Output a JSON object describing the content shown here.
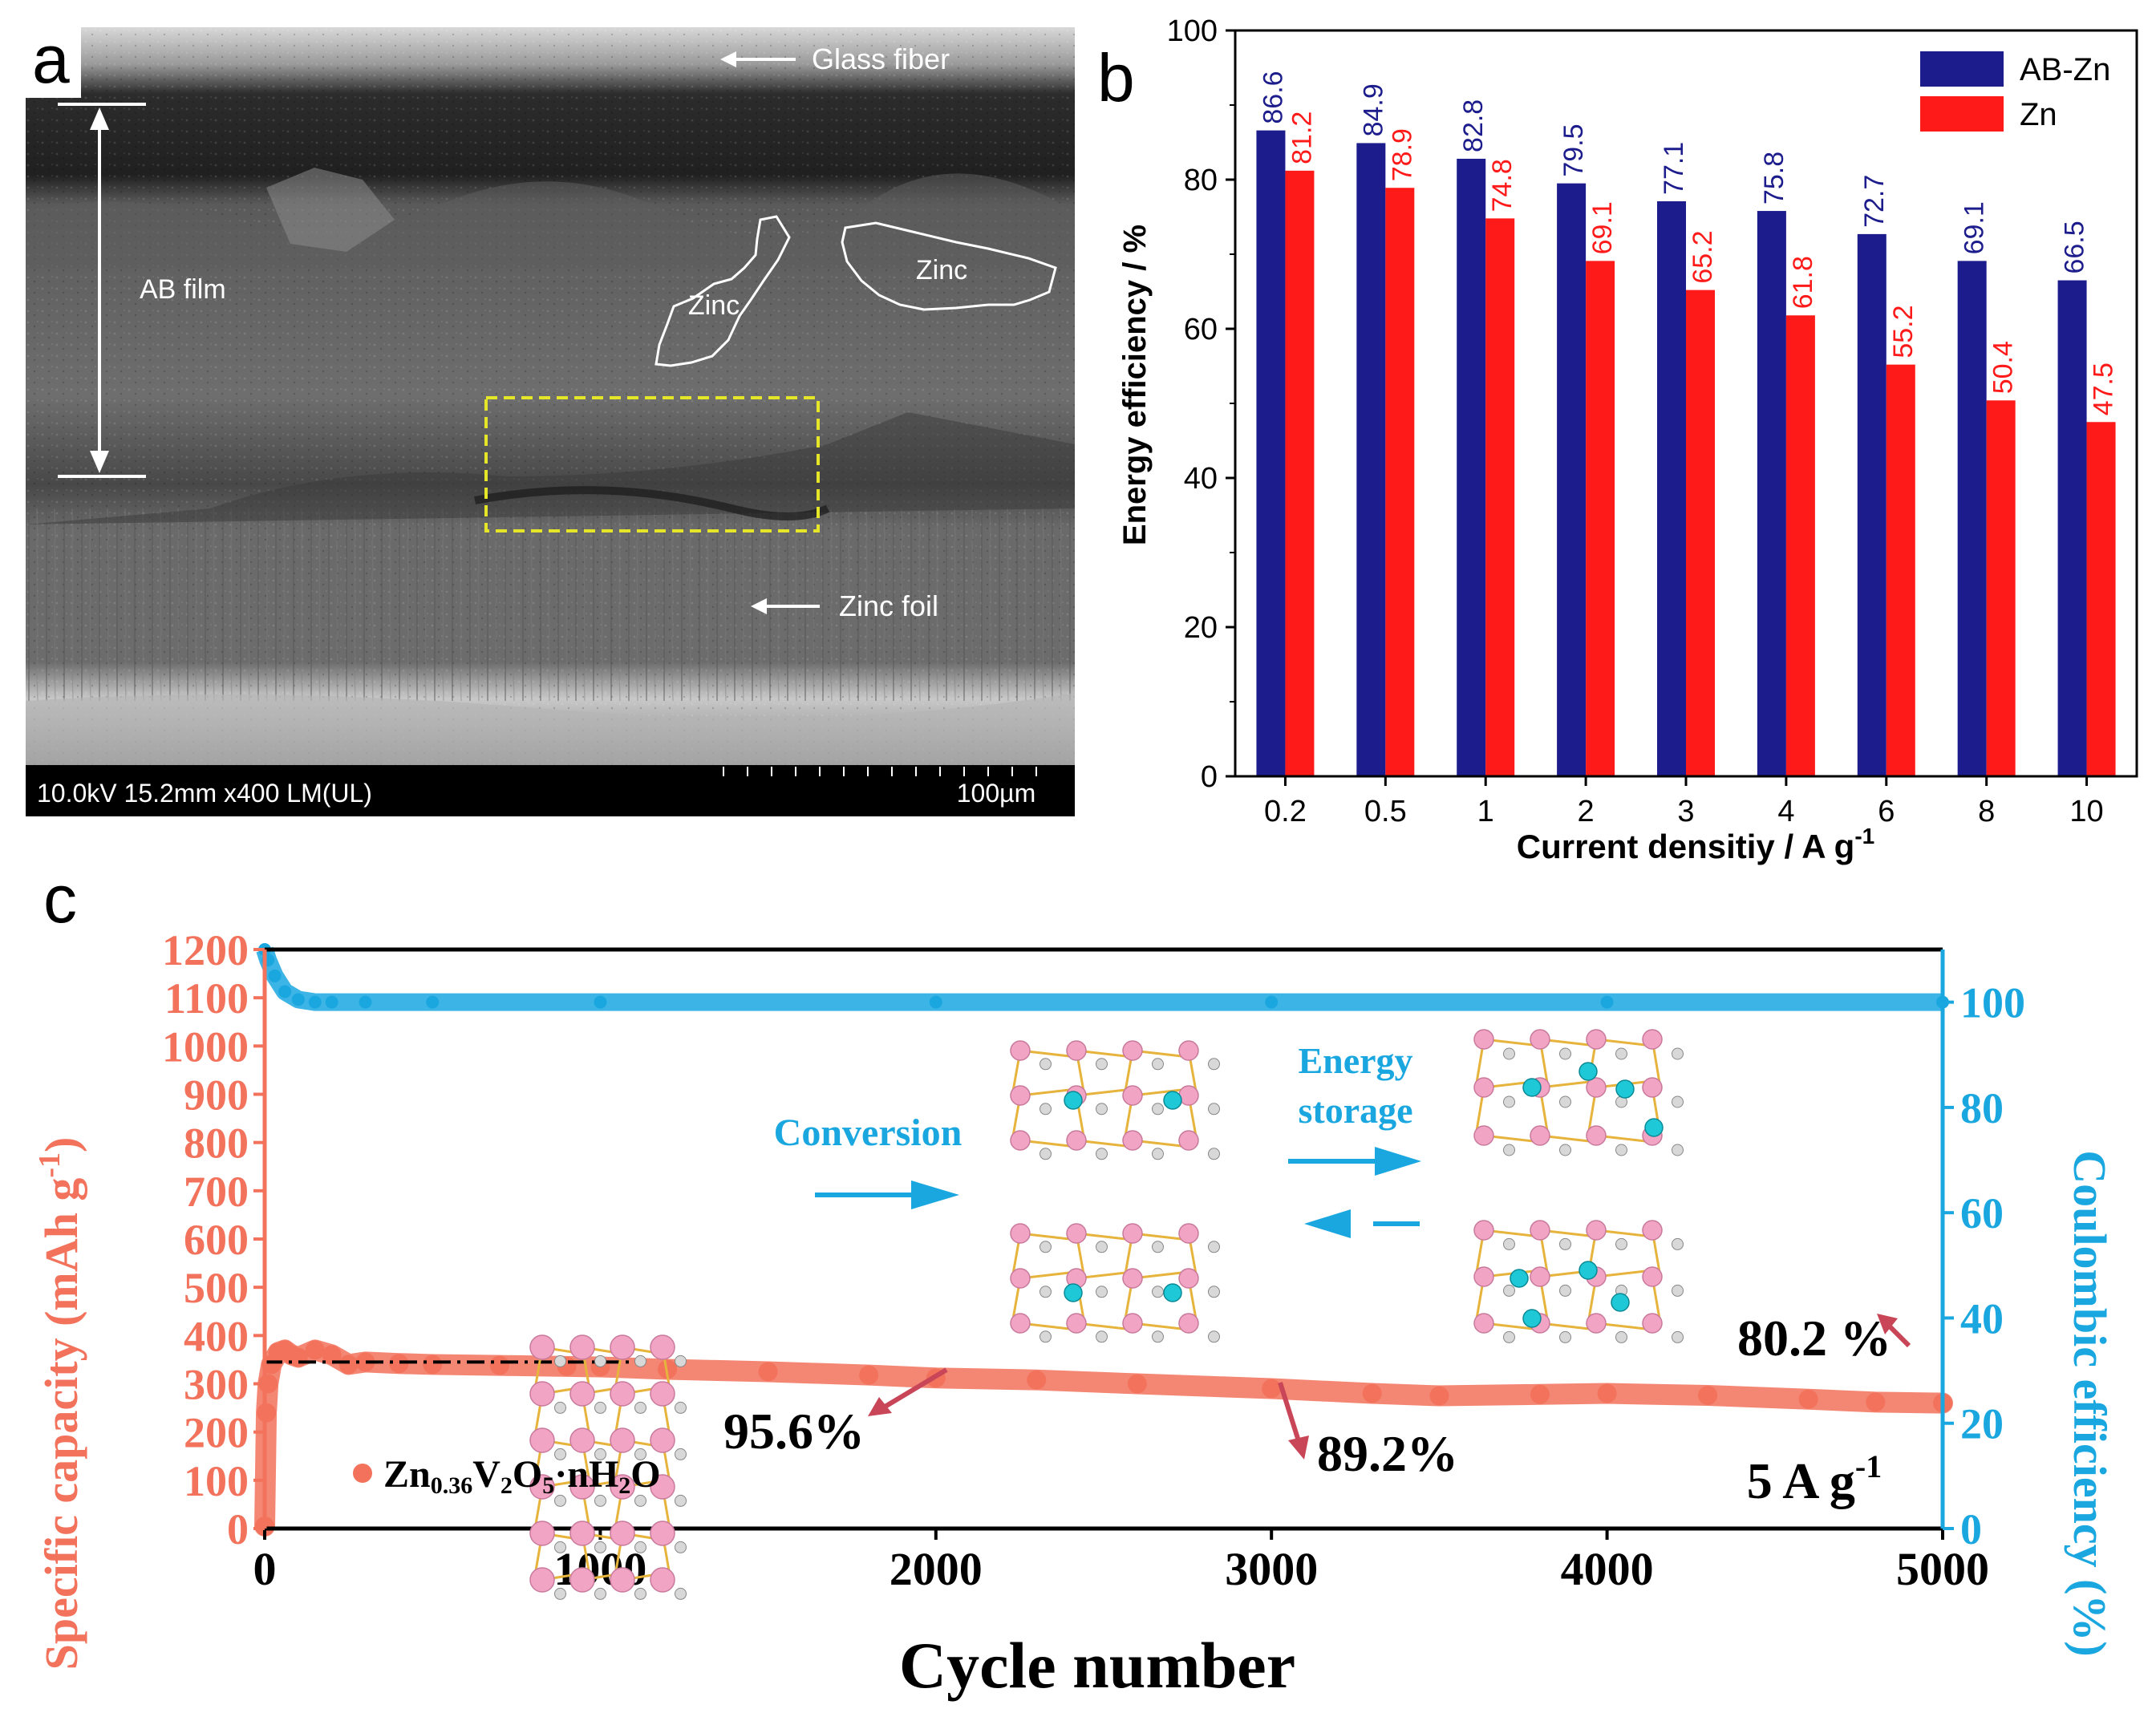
{
  "panel_a": {
    "letter": "a",
    "labels": {
      "glass_fiber": "Glass fiber",
      "ab_film": "AB film",
      "zinc1": "Zinc",
      "zinc2": "Zinc",
      "zinc_foil": "Zinc foil"
    },
    "info_bar": {
      "left": "10.0kV 15.2mm x400 LM(UL)",
      "scale": "100µm"
    }
  },
  "panel_b": {
    "letter": "b"
  },
  "panel_c": {
    "letter": "c",
    "annotations": {
      "conversion": "Conversion",
      "energy": "Energy",
      "storage": "storage",
      "ret1": "95.6%",
      "ret2": "89.2%",
      "ret3": "80.2 %",
      "rate": "5 A g",
      "rate_sup": "-1"
    },
    "legend_prefix": "Zn",
    "legend_sub1": "0.36",
    "legend_mid": "V",
    "legend_sub2": "2",
    "legend_o": "O",
    "legend_sub3": "5",
    "legend_end": "·nH",
    "legend_sub4": "2",
    "legend_tail": "O"
  },
  "colors": {
    "ab_zn": "#1c1c8c",
    "zn": "#ff1a1a",
    "capacity": "#f2725c",
    "coulombic": "#1aa7e0",
    "zn_ion": "#1fc8d6",
    "v_atom": "#f2a4c4"
  },
  "chart_data": [
    {
      "type": "bar",
      "categories": [
        "0.2",
        "0.5",
        "1",
        "2",
        "3",
        "4",
        "6",
        "8",
        "10"
      ],
      "series": [
        {
          "name": "AB-Zn",
          "values": [
            86.6,
            84.9,
            82.8,
            79.5,
            77.1,
            75.8,
            72.7,
            69.1,
            66.5
          ]
        },
        {
          "name": "Zn",
          "values": [
            81.2,
            78.9,
            74.8,
            69.1,
            65.2,
            61.8,
            55.2,
            50.4,
            47.5
          ]
        }
      ],
      "value_labels": {
        "AB-Zn": [
          "86.6",
          "84.9",
          "82.8",
          "79.5",
          "77.1",
          "75.8",
          "72.7",
          "69.1",
          "66.5"
        ],
        "Zn": [
          "81.2",
          "78.9",
          "74.8",
          "69.1",
          "65.2",
          "61.8",
          "55.2",
          "50.4",
          "47.5"
        ]
      },
      "xlabel": "Current densitiy / A g",
      "xlabel_sup": "-1",
      "ylabel": "Energy efficiency / %",
      "ylim": [
        0,
        100
      ],
      "yticks": [
        "0",
        "20",
        "40",
        "60",
        "80",
        "100"
      ],
      "legend": "top-right",
      "grid": false
    },
    {
      "type": "scatter",
      "xlabel": "Cycle number",
      "ylabel_left": "Specific capacity (mAh g",
      "ylabel_left_sup": "-1",
      "ylabel_left_end": ")",
      "ylabel_right": "Coulombic efficiency (%)",
      "xlim": [
        0,
        5000
      ],
      "ylim_left": [
        0,
        1200
      ],
      "ylim_right": [
        0,
        110
      ],
      "xticks": [
        "0",
        "1000",
        "2000",
        "3000",
        "4000",
        "5000"
      ],
      "yticks_left": [
        "0",
        "100",
        "200",
        "300",
        "400",
        "500",
        "600",
        "700",
        "800",
        "900",
        "1000",
        "1100",
        "1200"
      ],
      "yticks_right": [
        "0",
        "20",
        "40",
        "60",
        "80",
        "100"
      ],
      "reference_line": {
        "y": 345,
        "x": [
          0,
          1130
        ]
      },
      "series": [
        {
          "name": "Zn0.36V2O5·nH2O",
          "axis": "left",
          "x": [
            0,
            5,
            10,
            20,
            40,
            60,
            80,
            100,
            150,
            200,
            250,
            300,
            400,
            500,
            700,
            900,
            1000,
            1200,
            1500,
            1800,
            2000,
            2300,
            2600,
            3000,
            3300,
            3500,
            3800,
            4000,
            4300,
            4600,
            4800,
            5000
          ],
          "y": [
            5,
            240,
            300,
            340,
            365,
            370,
            360,
            355,
            370,
            360,
            340,
            345,
            342,
            340,
            338,
            336,
            335,
            330,
            325,
            318,
            312,
            308,
            300,
            290,
            280,
            275,
            278,
            280,
            276,
            268,
            262,
            260
          ]
        },
        {
          "name": "",
          "axis": "right",
          "x": [
            0,
            10,
            30,
            60,
            100,
            150,
            200,
            300,
            500,
            1000,
            2000,
            3000,
            4000,
            5000
          ],
          "y": [
            110,
            108,
            105,
            102,
            100.5,
            100,
            100,
            100,
            100,
            100,
            100,
            100,
            100,
            100
          ]
        }
      ],
      "retention_labels": [
        "95.6%",
        "89.2%",
        "80.2 %"
      ]
    }
  ]
}
